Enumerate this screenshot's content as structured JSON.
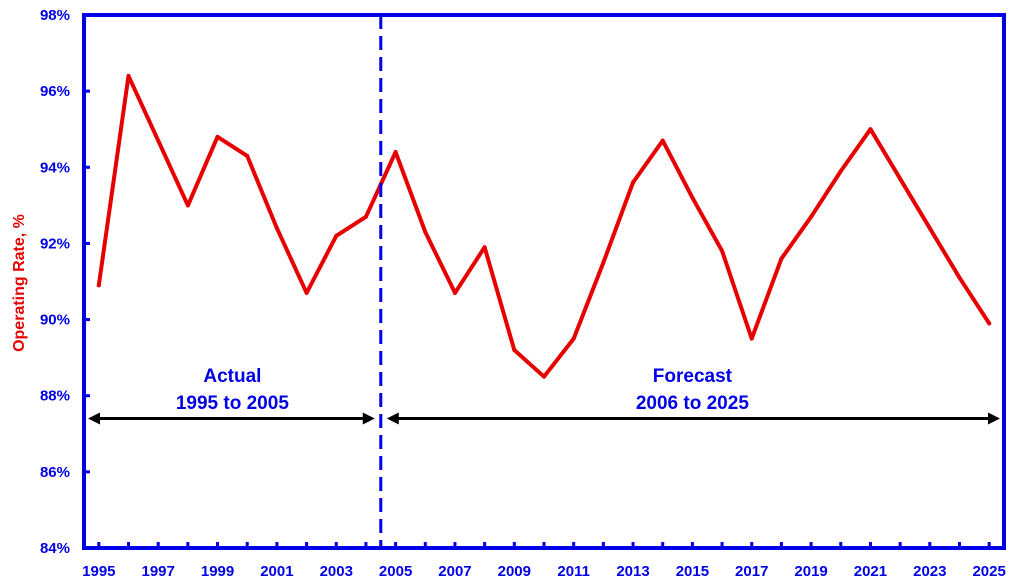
{
  "chart_data": {
    "type": "line",
    "title": "",
    "xlabel": "",
    "ylabel": "Operating Rate, %",
    "ylim": [
      84,
      98
    ],
    "xlim": [
      1994.5,
      2025.5
    ],
    "grid": false,
    "y_ticks": [
      "84%",
      "86%",
      "88%",
      "90%",
      "92%",
      "94%",
      "96%",
      "98%"
    ],
    "x_ticks": [
      "1995",
      "1997",
      "1999",
      "2001",
      "2003",
      "2005",
      "2007",
      "2009",
      "2011",
      "2013",
      "2015",
      "2017",
      "2019",
      "2021",
      "2023",
      "2025"
    ],
    "series": [
      {
        "color": "#e60000",
        "x": [
          1995,
          1996,
          1997,
          1998,
          1999,
          2000,
          2001,
          2002,
          2003,
          2004,
          2005,
          2006,
          2007,
          2008,
          2009,
          2010,
          2011,
          2012,
          2013,
          2014,
          2015,
          2016,
          2017,
          2018,
          2019,
          2020,
          2021,
          2022,
          2023,
          2024,
          2025
        ],
        "values": [
          90.9,
          96.4,
          94.7,
          93.0,
          94.8,
          94.3,
          92.4,
          90.7,
          92.2,
          92.7,
          94.4,
          92.3,
          90.7,
          91.9,
          89.2,
          88.5,
          89.5,
          91.5,
          93.6,
          94.7,
          93.2,
          91.8,
          89.5,
          91.6,
          92.7,
          93.9,
          95.0,
          93.7,
          92.4,
          91.1,
          89.9
        ]
      }
    ],
    "divider": {
      "x": 2004.5,
      "color": "#0000e6",
      "style": "dashed"
    },
    "annotations": [
      {
        "lines": [
          "Actual",
          "1995 to 2005"
        ],
        "span": [
          1994.5,
          2004.5
        ],
        "y": 87.4
      },
      {
        "lines": [
          "Forecast",
          "2006 to 2025"
        ],
        "span": [
          2004.5,
          2025.5
        ],
        "y": 87.4
      }
    ],
    "colors": {
      "axis": "#0000e6",
      "line": "#e60000",
      "arrow": "#000000"
    }
  }
}
